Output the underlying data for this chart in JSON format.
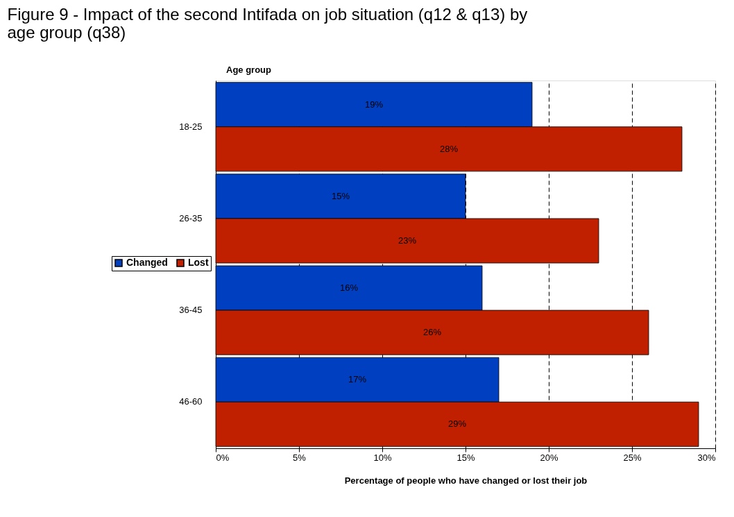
{
  "chart_data": {
    "type": "bar",
    "orientation": "horizontal",
    "title": [
      "Figure 9 - Impact of the second Intifada on job situation (q12 & q13) by",
      "age group (q38)"
    ],
    "ylabel": "Age group",
    "xlabel": "Percentage of people who have changed or lost their job",
    "categories": [
      "18-25",
      "26-35",
      "36-45",
      "46-60"
    ],
    "series": [
      {
        "name": "Changed",
        "color": "#0040c0",
        "values": [
          19,
          15,
          16,
          17
        ],
        "value_labels": [
          "19%",
          "15%",
          "16%",
          "17%"
        ]
      },
      {
        "name": "Lost",
        "color": "#c02000",
        "values": [
          28,
          23,
          26,
          29
        ],
        "value_labels": [
          "28%",
          "23%",
          "26%",
          "29%"
        ]
      }
    ],
    "xlim": [
      0,
      30
    ],
    "xticks": [
      {
        "value": 0,
        "label": "0%"
      },
      {
        "value": 5,
        "label": "5%"
      },
      {
        "value": 10,
        "label": "10%"
      },
      {
        "value": 15,
        "label": "15%"
      },
      {
        "value": 20,
        "label": "20%"
      },
      {
        "value": 25,
        "label": "25%"
      },
      {
        "value": 30,
        "label": "30%"
      }
    ],
    "grid": "x",
    "legend": "left"
  }
}
